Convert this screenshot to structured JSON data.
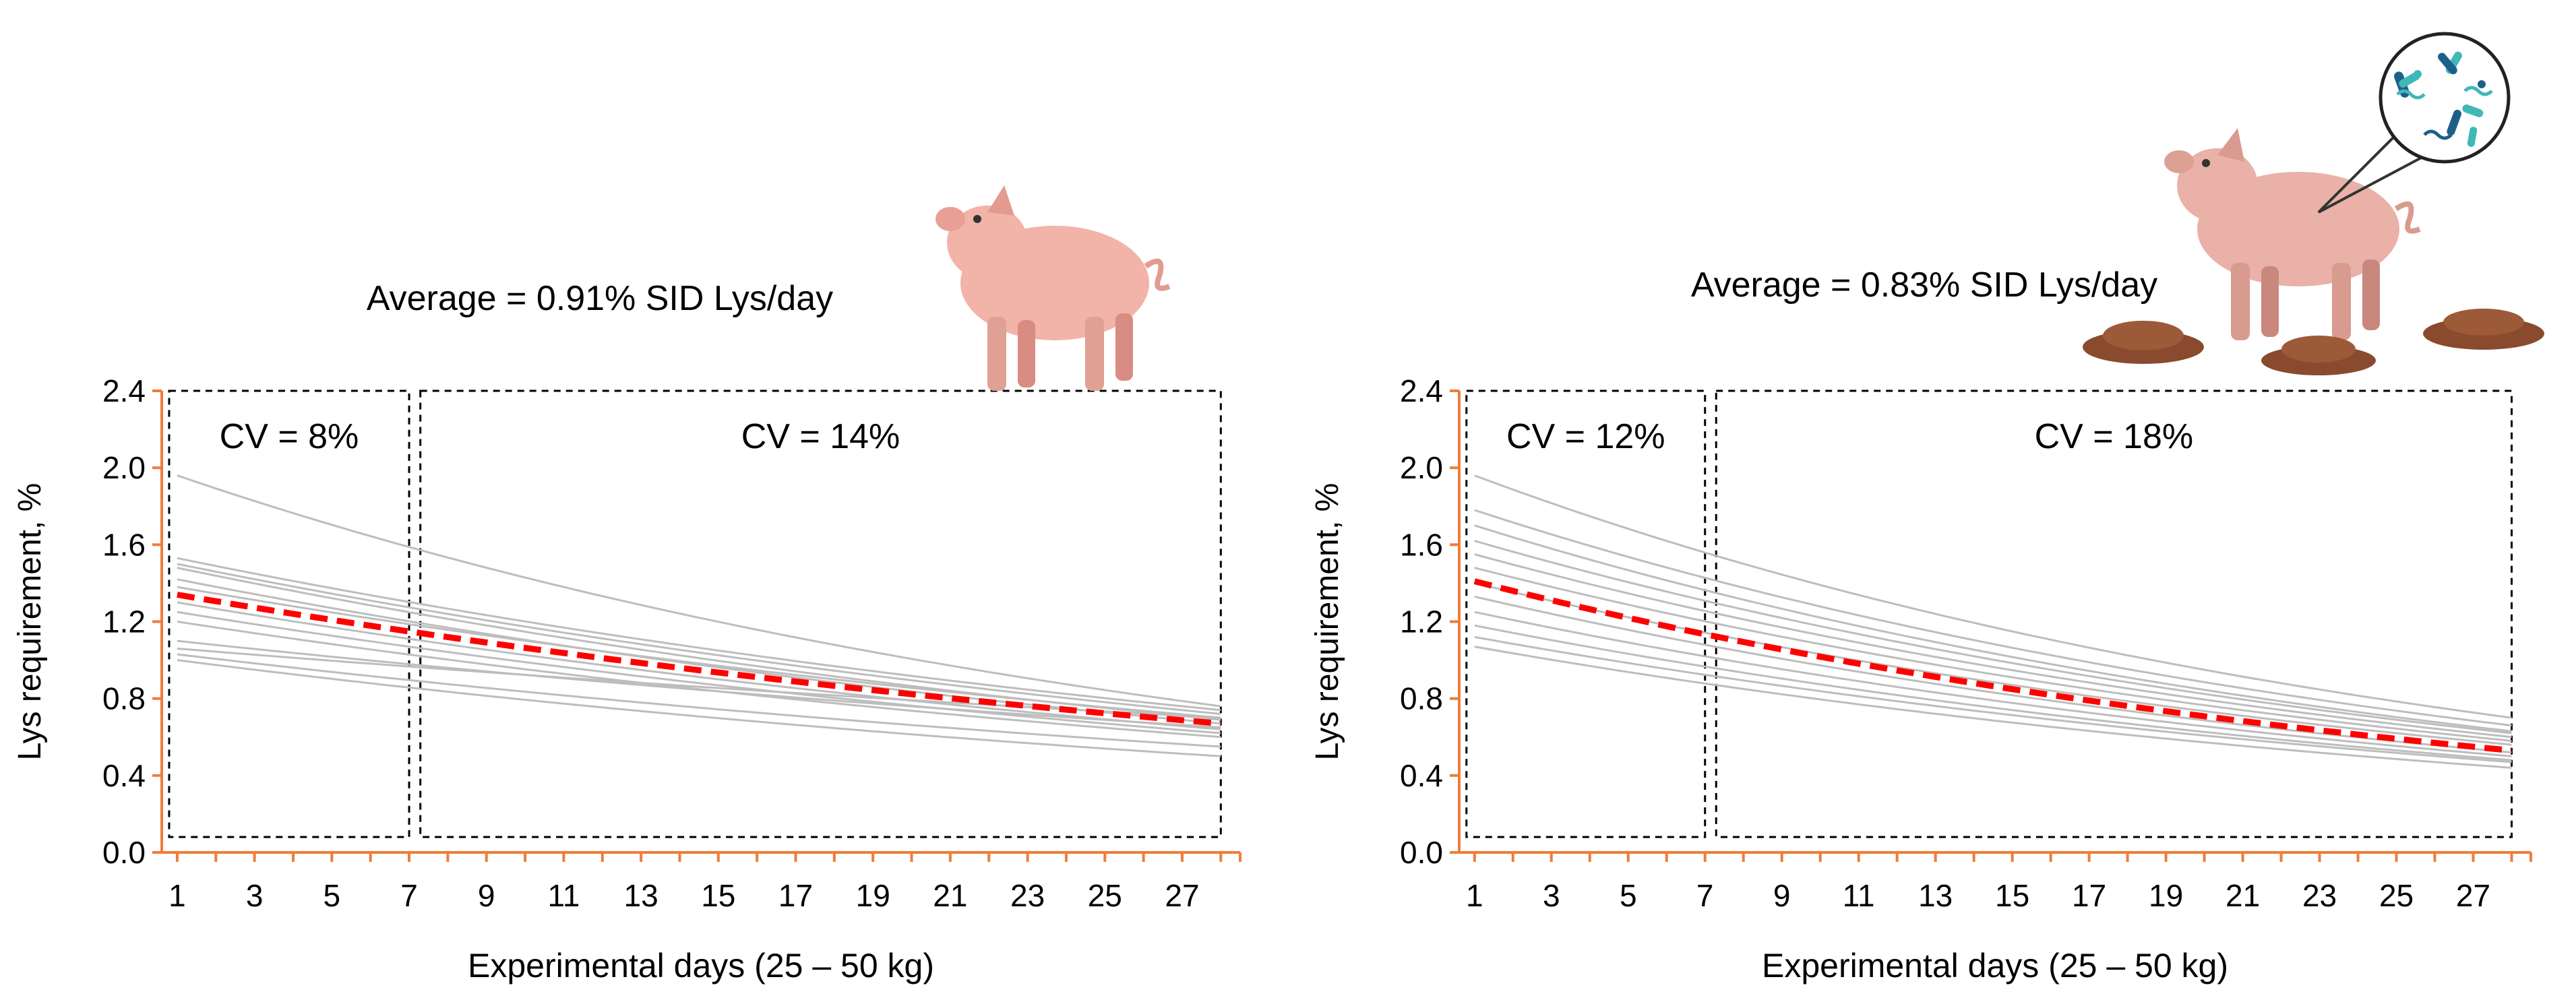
{
  "colors": {
    "axis": "#f07c3a",
    "average_line": "#ff0000",
    "individual_lines": "#bdbdbd",
    "cv_box": "#000000",
    "pig_body": "#f2b3a8",
    "pig_shade": "#d98c82",
    "feces": "#8a4a2e",
    "microbe_teal": "#3fb8b8",
    "microbe_blue": "#1e5f8a"
  },
  "chart_data": [
    {
      "type": "line",
      "panel": "left",
      "title": "Average = 0.91% SID Lys/day",
      "xlabel": "Experimental days (25 – 50 kg)",
      "ylabel": "Lys requirement, %",
      "xlim": [
        1,
        28
      ],
      "ylim": [
        0,
        2.4
      ],
      "yticks": [
        "0.0",
        "0.4",
        "0.8",
        "1.2",
        "1.6",
        "2.0",
        "2.4"
      ],
      "xticks": [
        "1",
        "3",
        "5",
        "7",
        "9",
        "11",
        "13",
        "15",
        "17",
        "19",
        "21",
        "23",
        "25",
        "27"
      ],
      "grid": false,
      "cv_boxes": [
        {
          "label": "CV = 8%",
          "from_day": 1,
          "to_day": 7
        },
        {
          "label": "CV = 14%",
          "from_day": 7.5,
          "to_day": 28
        }
      ],
      "average_series": {
        "name": "Average",
        "start": 1.34,
        "end": 0.67
      },
      "individual_series": [
        {
          "start": 1.96,
          "end": 0.76
        },
        {
          "start": 1.53,
          "end": 0.74
        },
        {
          "start": 1.5,
          "end": 0.72
        },
        {
          "start": 1.48,
          "end": 0.69
        },
        {
          "start": 1.42,
          "end": 0.67
        },
        {
          "start": 1.38,
          "end": 0.7
        },
        {
          "start": 1.3,
          "end": 0.64
        },
        {
          "start": 1.25,
          "end": 0.62
        },
        {
          "start": 1.2,
          "end": 0.6
        },
        {
          "start": 1.1,
          "end": 0.65
        },
        {
          "start": 1.06,
          "end": 0.7
        },
        {
          "start": 1.03,
          "end": 0.55
        },
        {
          "start": 1.0,
          "end": 0.5
        }
      ]
    },
    {
      "type": "line",
      "panel": "right",
      "title": "Average = 0.83% SID Lys/day",
      "xlabel": "Experimental days (25 – 50 kg)",
      "ylabel": "Lys requirement, %",
      "xlim": [
        1,
        28
      ],
      "ylim": [
        0,
        2.4
      ],
      "yticks": [
        "0.0",
        "0.4",
        "0.8",
        "1.2",
        "1.6",
        "2.0",
        "2.4"
      ],
      "xticks": [
        "1",
        "3",
        "5",
        "7",
        "9",
        "11",
        "13",
        "15",
        "17",
        "19",
        "21",
        "23",
        "25",
        "27"
      ],
      "grid": false,
      "cv_boxes": [
        {
          "label": "CV = 12%",
          "from_day": 1,
          "to_day": 7
        },
        {
          "label": "CV = 18%",
          "from_day": 7.5,
          "to_day": 28
        }
      ],
      "average_series": {
        "name": "Average",
        "start": 1.41,
        "end": 0.53
      },
      "individual_series": [
        {
          "start": 1.96,
          "end": 0.7
        },
        {
          "start": 1.78,
          "end": 0.66
        },
        {
          "start": 1.7,
          "end": 0.63
        },
        {
          "start": 1.62,
          "end": 0.62
        },
        {
          "start": 1.55,
          "end": 0.6
        },
        {
          "start": 1.48,
          "end": 0.58
        },
        {
          "start": 1.4,
          "end": 0.56
        },
        {
          "start": 1.33,
          "end": 0.52
        },
        {
          "start": 1.25,
          "end": 0.5
        },
        {
          "start": 1.18,
          "end": 0.48
        },
        {
          "start": 1.12,
          "end": 0.47
        },
        {
          "start": 1.07,
          "end": 0.44
        }
      ]
    }
  ]
}
